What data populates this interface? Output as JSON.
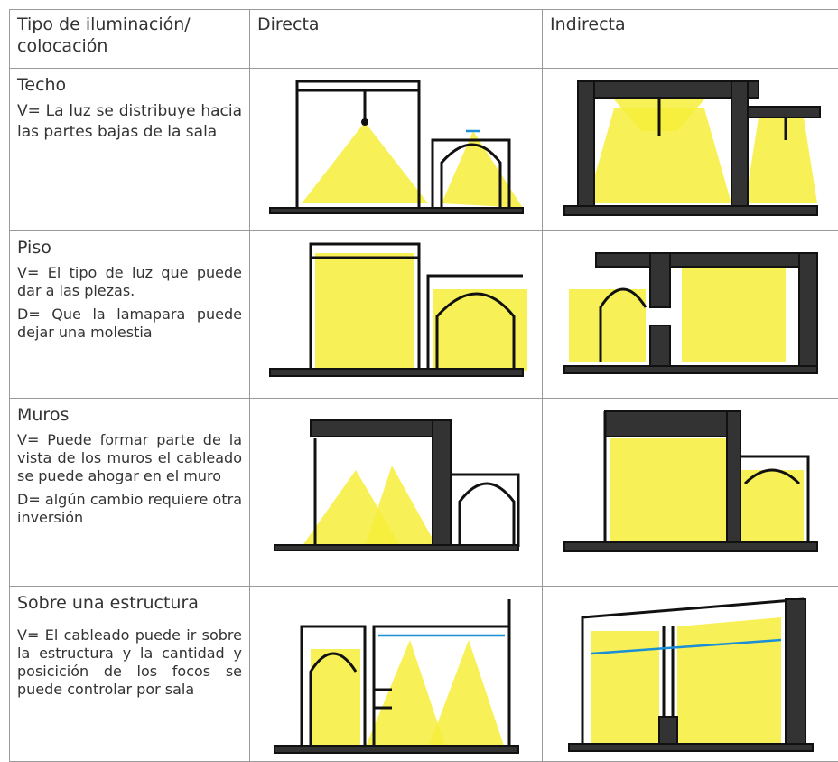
{
  "table": {
    "header": [
      "Tipo de iluminación/ colocación",
      "Directa",
      "Indirecta"
    ],
    "rows": [
      {
        "label": "Techo",
        "notes": [
          "V= La luz se distribuye hacia las partes bajas de la sala"
        ]
      },
      {
        "label": "Piso",
        "notes": [
          "V= El tipo de luz que puede dar a las piezas.",
          "D= Que la lamapara puede dejar una molestia"
        ]
      },
      {
        "label": "Muros",
        "notes": [
          "V= Puede formar parte de la vista de los muros el cableado se puede ahogar en el muro",
          "D= algún cambio requiere otra inversión"
        ]
      },
      {
        "label": "Sobre una estructura",
        "notes": [
          "V= El cableado puede ir sobre la estructura y la cantidad y posicición de los focos se puede controlar por sala"
        ]
      }
    ]
  }
}
